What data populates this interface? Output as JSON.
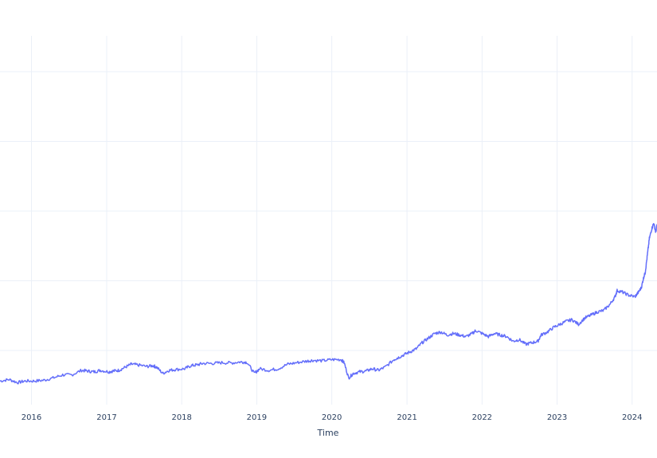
{
  "chart_data": {
    "type": "line",
    "xlabel": "Time",
    "ylabel": "",
    "xlim": [
      "2015-08-01",
      "2024-05-01"
    ],
    "ylim": [
      0,
      1
    ],
    "x_ticks": [
      "2016",
      "2017",
      "2018",
      "2019",
      "2020",
      "2021",
      "2022",
      "2023",
      "2024"
    ],
    "y_gridlines": 5,
    "grid": true,
    "line_color": "#636efa",
    "series": [
      {
        "x": [
          "2015-08-01",
          "2015-09-15",
          "2015-10-25",
          "2015-12-01",
          "2016-01-15",
          "2016-03-01",
          "2016-04-15",
          "2016-06-01",
          "2016-07-15",
          "2016-09-01",
          "2016-10-01",
          "2016-11-01",
          "2016-12-01",
          "2017-01-10",
          "2017-02-01",
          "2017-03-01",
          "2017-04-01",
          "2017-05-01",
          "2017-06-01",
          "2017-07-15",
          "2017-08-15",
          "2017-09-01",
          "2017-10-01",
          "2017-11-01",
          "2017-12-01",
          "2018-01-15",
          "2018-02-15",
          "2018-03-15",
          "2018-04-15",
          "2018-06-01",
          "2018-07-15",
          "2018-09-01",
          "2018-10-15",
          "2018-11-15",
          "2018-12-20",
          "2019-01-15",
          "2019-03-01",
          "2019-04-15",
          "2019-06-01",
          "2019-07-15",
          "2019-09-01",
          "2019-10-01",
          "2019-11-15",
          "2020-01-01",
          "2020-02-15",
          "2020-03-01",
          "2020-03-23",
          "2020-04-15",
          "2020-05-15",
          "2020-06-15",
          "2020-07-15",
          "2020-08-15",
          "2020-09-15",
          "2020-10-30",
          "2020-11-15",
          "2020-12-15",
          "2021-01-15",
          "2021-02-15",
          "2021-03-15",
          "2021-04-15",
          "2021-05-15",
          "2021-06-15",
          "2021-07-15",
          "2021-08-15",
          "2021-09-15",
          "2021-10-15",
          "2021-11-15",
          "2021-12-01",
          "2022-01-01",
          "2022-02-01",
          "2022-03-01",
          "2022-04-01",
          "2022-05-01",
          "2022-06-01",
          "2022-07-01",
          "2022-08-01",
          "2022-09-01",
          "2022-09-30",
          "2022-10-15",
          "2022-11-15",
          "2022-12-15",
          "2023-01-15",
          "2023-02-15",
          "2023-03-15",
          "2023-04-15",
          "2023-05-15",
          "2023-06-15",
          "2023-07-15",
          "2023-08-15",
          "2023-09-15",
          "2023-10-10",
          "2023-10-20",
          "2023-11-15",
          "2023-12-15",
          "2024-01-15",
          "2024-02-01",
          "2024-02-15",
          "2024-02-25",
          "2024-03-05",
          "2024-03-15",
          "2024-03-25",
          "2024-04-05",
          "2024-04-15",
          "2024-04-25",
          "2024-05-01"
        ],
        "y": [
          0.05,
          0.06,
          0.04,
          0.05,
          0.05,
          0.055,
          0.07,
          0.09,
          0.09,
          0.12,
          0.115,
          0.11,
          0.12,
          0.11,
          0.115,
          0.12,
          0.14,
          0.16,
          0.155,
          0.145,
          0.15,
          0.14,
          0.1,
          0.12,
          0.125,
          0.13,
          0.15,
          0.155,
          0.165,
          0.165,
          0.17,
          0.168,
          0.175,
          0.172,
          0.1,
          0.13,
          0.12,
          0.13,
          0.16,
          0.17,
          0.18,
          0.185,
          0.182,
          0.19,
          0.19,
          0.17,
          0.07,
          0.1,
          0.11,
          0.115,
          0.13,
          0.12,
          0.14,
          0.19,
          0.2,
          0.22,
          0.24,
          0.26,
          0.3,
          0.33,
          0.36,
          0.37,
          0.35,
          0.36,
          0.35,
          0.34,
          0.36,
          0.38,
          0.36,
          0.34,
          0.36,
          0.35,
          0.34,
          0.31,
          0.32,
          0.29,
          0.3,
          0.31,
          0.35,
          0.37,
          0.4,
          0.42,
          0.44,
          0.45,
          0.42,
          0.46,
          0.48,
          0.5,
          0.51,
          0.55,
          0.6,
          0.64,
          0.63,
          0.61,
          0.6,
          0.63,
          0.66,
          0.72,
          0.76,
          0.87,
          0.98,
          1.04,
          1.08,
          1.02,
          1.07
        ]
      }
    ]
  }
}
